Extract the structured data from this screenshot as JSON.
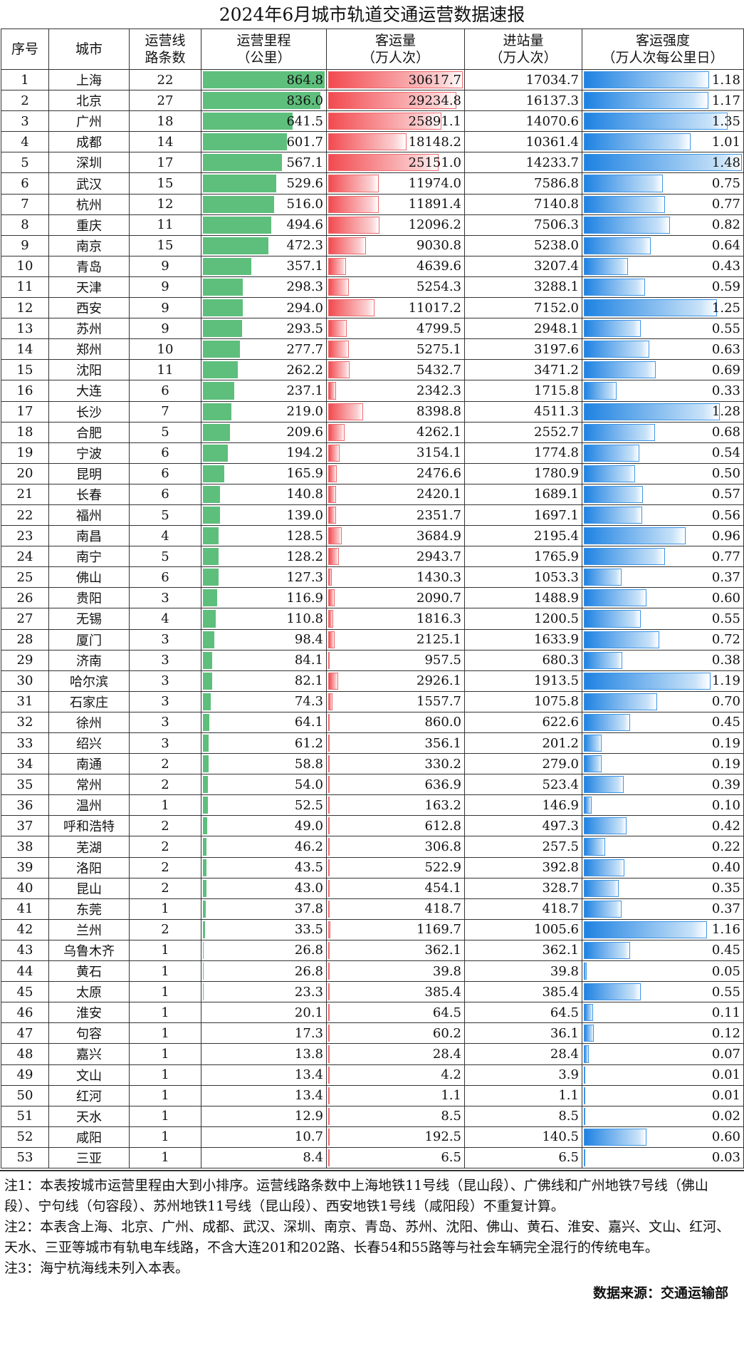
{
  "title": "2024年6月城市轨道交通运营数据速报",
  "headers": [
    "序号",
    "城市",
    "运营线\n路条数",
    "运营里程\n（公里）",
    "客运量\n（万人次）",
    "进站量\n（万人次）",
    "客运强度\n（万人次每公里日）"
  ],
  "colors": {
    "mileage_bar": "#5dbf7b",
    "ridership_bar": "#f24a4f",
    "intensity_bar": "#1e82e2"
  },
  "rows": [
    [
      "1",
      "上海",
      "22",
      "864.8",
      "30617.7",
      "17034.7",
      "1.18"
    ],
    [
      "2",
      "北京",
      "27",
      "836.0",
      "29234.8",
      "16137.3",
      "1.17"
    ],
    [
      "3",
      "广州",
      "18",
      "641.5",
      "25891.1",
      "14070.6",
      "1.35"
    ],
    [
      "4",
      "成都",
      "14",
      "601.7",
      "18148.2",
      "10361.4",
      "1.01"
    ],
    [
      "5",
      "深圳",
      "17",
      "567.1",
      "25151.0",
      "14233.7",
      "1.48"
    ],
    [
      "6",
      "武汉",
      "15",
      "529.6",
      "11974.0",
      "7586.8",
      "0.75"
    ],
    [
      "7",
      "杭州",
      "12",
      "516.0",
      "11891.4",
      "7140.8",
      "0.77"
    ],
    [
      "8",
      "重庆",
      "11",
      "494.6",
      "12096.2",
      "7506.3",
      "0.82"
    ],
    [
      "9",
      "南京",
      "15",
      "472.3",
      "9030.8",
      "5238.0",
      "0.64"
    ],
    [
      "10",
      "青岛",
      "9",
      "357.1",
      "4639.6",
      "3207.4",
      "0.43"
    ],
    [
      "11",
      "天津",
      "9",
      "298.3",
      "5254.3",
      "3288.1",
      "0.59"
    ],
    [
      "12",
      "西安",
      "9",
      "294.0",
      "11017.2",
      "7152.0",
      "1.25"
    ],
    [
      "13",
      "苏州",
      "9",
      "293.5",
      "4799.5",
      "2948.1",
      "0.55"
    ],
    [
      "14",
      "郑州",
      "10",
      "277.7",
      "5275.1",
      "3197.6",
      "0.63"
    ],
    [
      "15",
      "沈阳",
      "11",
      "262.2",
      "5432.7",
      "3471.2",
      "0.69"
    ],
    [
      "16",
      "大连",
      "6",
      "237.1",
      "2342.3",
      "1715.8",
      "0.33"
    ],
    [
      "17",
      "长沙",
      "7",
      "219.0",
      "8398.8",
      "4511.3",
      "1.28"
    ],
    [
      "18",
      "合肥",
      "5",
      "209.6",
      "4262.1",
      "2552.7",
      "0.68"
    ],
    [
      "19",
      "宁波",
      "6",
      "194.2",
      "3154.1",
      "1774.8",
      "0.54"
    ],
    [
      "20",
      "昆明",
      "6",
      "165.9",
      "2476.6",
      "1780.9",
      "0.50"
    ],
    [
      "21",
      "长春",
      "6",
      "140.8",
      "2420.1",
      "1689.1",
      "0.57"
    ],
    [
      "22",
      "福州",
      "5",
      "139.0",
      "2351.7",
      "1697.1",
      "0.56"
    ],
    [
      "23",
      "南昌",
      "4",
      "128.5",
      "3684.9",
      "2195.4",
      "0.96"
    ],
    [
      "24",
      "南宁",
      "5",
      "128.2",
      "2943.7",
      "1765.9",
      "0.77"
    ],
    [
      "25",
      "佛山",
      "6",
      "127.3",
      "1430.3",
      "1053.3",
      "0.37"
    ],
    [
      "26",
      "贵阳",
      "3",
      "116.9",
      "2090.7",
      "1488.9",
      "0.60"
    ],
    [
      "27",
      "无锡",
      "4",
      "110.8",
      "1816.3",
      "1200.5",
      "0.55"
    ],
    [
      "28",
      "厦门",
      "3",
      "98.4",
      "2125.1",
      "1633.9",
      "0.72"
    ],
    [
      "29",
      "济南",
      "3",
      "84.1",
      "957.5",
      "680.3",
      "0.38"
    ],
    [
      "30",
      "哈尔滨",
      "3",
      "82.1",
      "2926.1",
      "1913.5",
      "1.19"
    ],
    [
      "31",
      "石家庄",
      "3",
      "74.3",
      "1557.7",
      "1075.8",
      "0.70"
    ],
    [
      "32",
      "徐州",
      "3",
      "64.1",
      "860.0",
      "622.6",
      "0.45"
    ],
    [
      "33",
      "绍兴",
      "3",
      "61.2",
      "356.1",
      "201.2",
      "0.19"
    ],
    [
      "34",
      "南通",
      "2",
      "58.8",
      "330.2",
      "279.0",
      "0.19"
    ],
    [
      "35",
      "常州",
      "2",
      "54.0",
      "636.9",
      "523.4",
      "0.39"
    ],
    [
      "36",
      "温州",
      "1",
      "52.5",
      "163.2",
      "146.9",
      "0.10"
    ],
    [
      "37",
      "呼和浩特",
      "2",
      "49.0",
      "612.8",
      "497.3",
      "0.42"
    ],
    [
      "38",
      "芜湖",
      "2",
      "46.2",
      "306.8",
      "257.5",
      "0.22"
    ],
    [
      "39",
      "洛阳",
      "2",
      "43.5",
      "522.9",
      "392.8",
      "0.40"
    ],
    [
      "40",
      "昆山",
      "2",
      "43.0",
      "454.1",
      "328.7",
      "0.35"
    ],
    [
      "41",
      "东莞",
      "1",
      "37.8",
      "418.7",
      "418.7",
      "0.37"
    ],
    [
      "42",
      "兰州",
      "2",
      "33.5",
      "1169.7",
      "1005.6",
      "1.16"
    ],
    [
      "43",
      "乌鲁木齐",
      "1",
      "26.8",
      "362.1",
      "362.1",
      "0.45"
    ],
    [
      "44",
      "黄石",
      "1",
      "26.8",
      "39.8",
      "39.8",
      "0.05"
    ],
    [
      "45",
      "太原",
      "1",
      "23.3",
      "385.4",
      "385.4",
      "0.55"
    ],
    [
      "46",
      "淮安",
      "1",
      "20.1",
      "64.5",
      "64.5",
      "0.11"
    ],
    [
      "47",
      "句容",
      "1",
      "17.3",
      "60.2",
      "36.1",
      "0.12"
    ],
    [
      "48",
      "嘉兴",
      "1",
      "13.8",
      "28.4",
      "28.4",
      "0.07"
    ],
    [
      "49",
      "文山",
      "1",
      "13.4",
      "4.2",
      "3.9",
      "0.01"
    ],
    [
      "50",
      "红河",
      "1",
      "13.4",
      "1.1",
      "1.1",
      "0.01"
    ],
    [
      "51",
      "天水",
      "1",
      "12.9",
      "8.5",
      "8.5",
      "0.02"
    ],
    [
      "52",
      "咸阳",
      "1",
      "10.7",
      "192.5",
      "140.5",
      "0.60"
    ],
    [
      "53",
      "三亚",
      "1",
      "8.4",
      "6.5",
      "6.5",
      "0.03"
    ]
  ],
  "notes": [
    "注1：本表按城市运营里程由大到小排序。运营线路条数中上海地铁11号线（昆山段）、广佛线和广州地铁7号线（佛山段）、宁句线（句容段）、苏州地铁11号线（昆山段）、西安地铁1号线（咸阳段）不重复计算。",
    "注2：本表含上海、北京、广州、成都、武汉、深圳、南京、青岛、苏州、沈阳、佛山、黄石、淮安、嘉兴、文山、红河、天水、三亚等城市有轨电车线路，不含大连201和202路、长春54和55路等与社会车辆完全混行的传统电车。",
    "注3：海宁杭海线未列入本表。"
  ],
  "source": "数据来源：交通运输部"
}
